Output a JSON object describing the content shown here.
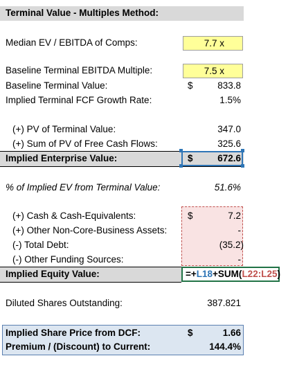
{
  "sheet": {
    "title": "Terminal Value - Multiples Method:",
    "median_multiple": {
      "label": "Median EV / EBITDA of Comps:",
      "value": "7.7 x"
    },
    "baseline_multiple": {
      "label": "Baseline Terminal EBITDA Multiple:",
      "value": "7.5 x"
    },
    "baseline_tv": {
      "label": "Baseline Terminal Value:",
      "currency": "$",
      "value": "833.8"
    },
    "implied_growth": {
      "label": "Implied Terminal FCF Growth Rate:",
      "value": "1.5%"
    },
    "pv_tv": {
      "label": "(+) PV of Terminal Value:",
      "value": "347.0"
    },
    "sum_pv_fcf": {
      "label": "(+) Sum of PV of Free Cash Flows:",
      "value": "325.6"
    },
    "implied_ev": {
      "label": "Implied Enterprise Value:",
      "currency": "$",
      "value": "672.6"
    },
    "pct_ev_tv": {
      "label": "% of Implied EV from Terminal Value:",
      "value": "51.6%"
    },
    "cash": {
      "label": "(+) Cash & Cash-Equivalents:",
      "currency": "$",
      "value": "7.2"
    },
    "other_assets": {
      "label": "(+) Other Non-Core-Business Assets:",
      "value": "-"
    },
    "total_debt": {
      "label": "(-) Total Debt:",
      "value": "(35.2)"
    },
    "other_funding": {
      "label": "(-) Other Funding Sources:",
      "value": "-"
    },
    "implied_equity": {
      "label": "Implied Equity Value:",
      "formula_prefix": "=+",
      "formula_ref1": "L18",
      "formula_mid": "+SUM(",
      "formula_ref2": "L22:L25",
      "formula_suffix": ")"
    },
    "diluted_shares": {
      "label": "Diluted Shares Outstanding:",
      "value": "387.821"
    },
    "share_price": {
      "label": "Implied Share Price from DCF:",
      "currency": "$",
      "value": "1.66"
    },
    "premium": {
      "label": "Premium / (Discount) to Current:",
      "value": "144.4%"
    }
  },
  "colors": {
    "input_yellow": "#ffff99",
    "header_gray": "#d9d9d9",
    "result_blue": "#dce6f1",
    "selection_blue": "#2e75b6",
    "selection_red": "#c0504d",
    "edit_green": "#217346"
  }
}
